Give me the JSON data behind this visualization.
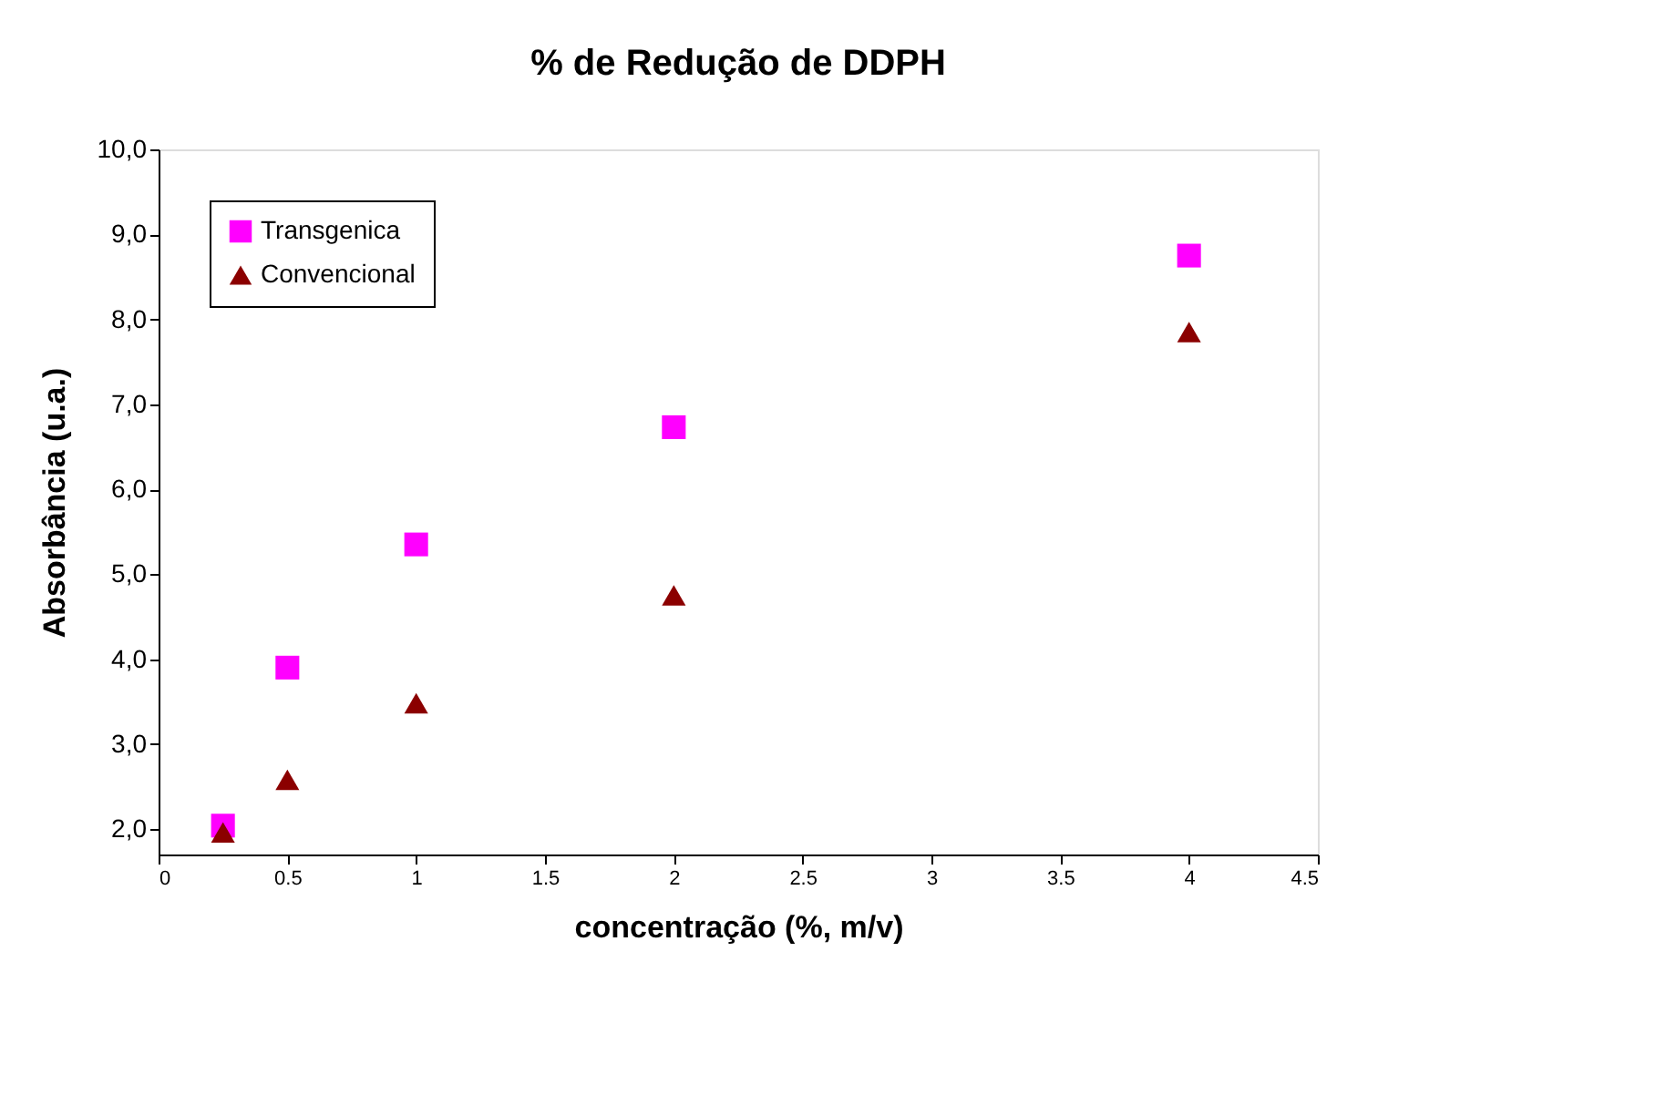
{
  "chart_data": {
    "type": "scatter",
    "title": "% de Redução de DDPH",
    "xlabel": "concentração (%, m/v)",
    "ylabel": "Absorbância (u.a.)",
    "x": [
      0.25,
      0.5,
      1,
      2,
      4
    ],
    "series": [
      {
        "name": "Transgenica",
        "color": "#ff00ff",
        "marker": "square",
        "values": [
          2.04,
          3.9,
          5.35,
          6.73,
          8.75
        ]
      },
      {
        "name": "Convencional",
        "color": "#8b0000",
        "marker": "triangle",
        "values": [
          1.96,
          2.58,
          3.48,
          4.75,
          7.85
        ]
      }
    ],
    "xlim": [
      0,
      4.5
    ],
    "xticks": [
      0,
      0.5,
      1,
      1.5,
      2,
      2.5,
      3,
      3.5,
      4,
      4.5
    ],
    "ylim": [
      1.7,
      10
    ],
    "yticks": [
      {
        "value": 2,
        "label": "2,0"
      },
      {
        "value": 3,
        "label": "3,0"
      },
      {
        "value": 4,
        "label": "4,0"
      },
      {
        "value": 5,
        "label": "5,0"
      },
      {
        "value": 6,
        "label": "6,0"
      },
      {
        "value": 7,
        "label": "7,0"
      },
      {
        "value": 8,
        "label": "8,0"
      },
      {
        "value": 9,
        "label": "9,0"
      },
      {
        "value": 10,
        "label": "10,0"
      }
    ],
    "grid": false,
    "legend": "top left"
  }
}
